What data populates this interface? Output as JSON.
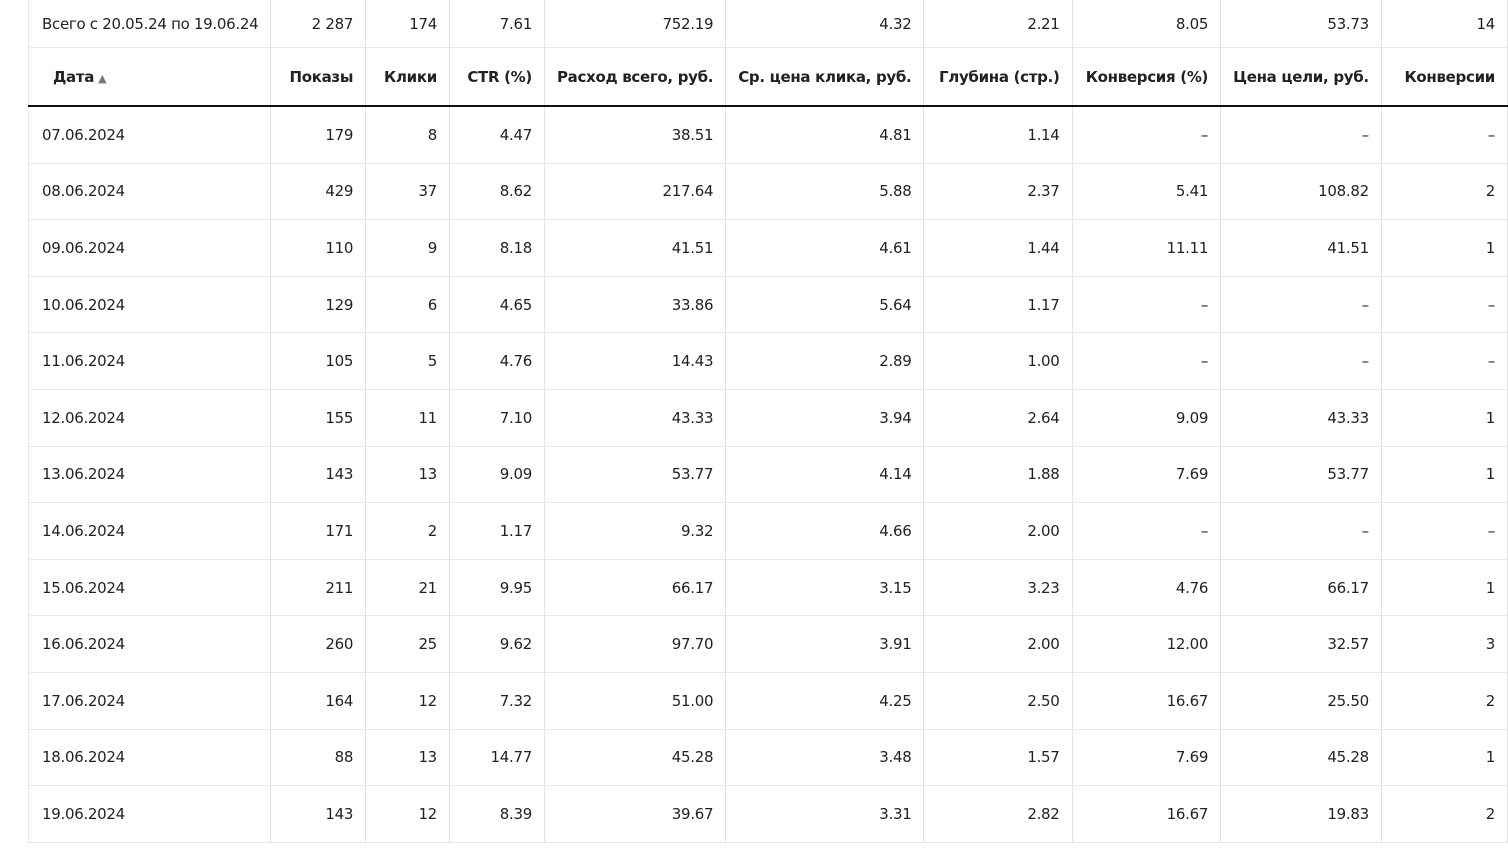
{
  "columns": [
    "Дата",
    "Показы",
    "Клики",
    "CTR (%)",
    "Расход всего, руб.",
    "Ср. цена клика, руб.",
    "Глубина (стр.)",
    "Конверсия (%)",
    "Цена цели, руб.",
    "Конверсии"
  ],
  "sort_indicator": "▲",
  "total": [
    "Всего с 20.05.24 по 19.06.24",
    "2 287",
    "174",
    "7.61",
    "752.19",
    "4.32",
    "2.21",
    "8.05",
    "53.73",
    "14"
  ],
  "rows": [
    [
      "07.06.2024",
      "179",
      "8",
      "4.47",
      "38.51",
      "4.81",
      "1.14",
      "–",
      "–",
      "–"
    ],
    [
      "08.06.2024",
      "429",
      "37",
      "8.62",
      "217.64",
      "5.88",
      "2.37",
      "5.41",
      "108.82",
      "2"
    ],
    [
      "09.06.2024",
      "110",
      "9",
      "8.18",
      "41.51",
      "4.61",
      "1.44",
      "11.11",
      "41.51",
      "1"
    ],
    [
      "10.06.2024",
      "129",
      "6",
      "4.65",
      "33.86",
      "5.64",
      "1.17",
      "–",
      "–",
      "–"
    ],
    [
      "11.06.2024",
      "105",
      "5",
      "4.76",
      "14.43",
      "2.89",
      "1.00",
      "–",
      "–",
      "–"
    ],
    [
      "12.06.2024",
      "155",
      "11",
      "7.10",
      "43.33",
      "3.94",
      "2.64",
      "9.09",
      "43.33",
      "1"
    ],
    [
      "13.06.2024",
      "143",
      "13",
      "9.09",
      "53.77",
      "4.14",
      "1.88",
      "7.69",
      "53.77",
      "1"
    ],
    [
      "14.06.2024",
      "171",
      "2",
      "1.17",
      "9.32",
      "4.66",
      "2.00",
      "–",
      "–",
      "–"
    ],
    [
      "15.06.2024",
      "211",
      "21",
      "9.95",
      "66.17",
      "3.15",
      "3.23",
      "4.76",
      "66.17",
      "1"
    ],
    [
      "16.06.2024",
      "260",
      "25",
      "9.62",
      "97.70",
      "3.91",
      "2.00",
      "12.00",
      "32.57",
      "3"
    ],
    [
      "17.06.2024",
      "164",
      "12",
      "7.32",
      "51.00",
      "4.25",
      "2.50",
      "16.67",
      "25.50",
      "2"
    ],
    [
      "18.06.2024",
      "88",
      "13",
      "14.77",
      "45.28",
      "3.48",
      "1.57",
      "7.69",
      "45.28",
      "1"
    ],
    [
      "19.06.2024",
      "143",
      "12",
      "8.39",
      "39.67",
      "3.31",
      "2.82",
      "16.67",
      "19.83",
      "2"
    ]
  ]
}
